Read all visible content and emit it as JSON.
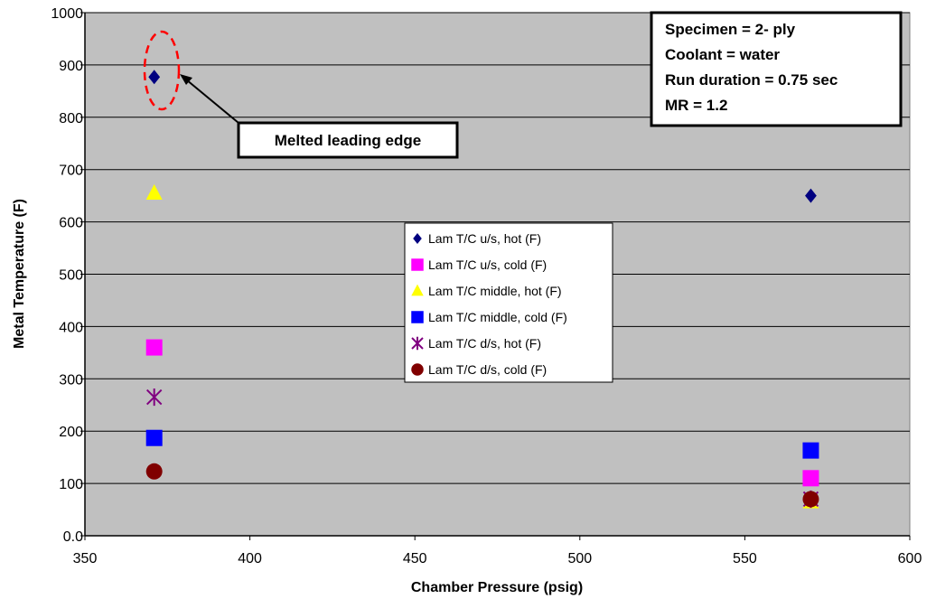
{
  "chart_data": {
    "type": "scatter",
    "xlabel": "Chamber Pressure (psig)",
    "ylabel": "Metal Temperature (F)",
    "xlim": [
      350,
      600
    ],
    "ylim": [
      0,
      1000
    ],
    "x_ticks": [
      "350",
      "400",
      "450",
      "500",
      "550",
      "600"
    ],
    "y_ticks": [
      "0.0",
      "100",
      "200",
      "300",
      "400",
      "500",
      "600",
      "700",
      "800",
      "900",
      "1000"
    ],
    "grid": "horizontal",
    "legend_position": "center",
    "series": [
      {
        "name": "Lam T/C u/s, hot (F)",
        "marker": "diamond",
        "color": "#000080",
        "points": [
          {
            "x": 371,
            "y": 877
          },
          {
            "x": 570,
            "y": 650
          }
        ]
      },
      {
        "name": "Lam T/C u/s, cold (F)",
        "marker": "square",
        "color": "#FF00FF",
        "points": [
          {
            "x": 371,
            "y": 360
          },
          {
            "x": 570,
            "y": 110
          }
        ]
      },
      {
        "name": "Lam T/C middle, hot (F)",
        "marker": "triangle",
        "color": "#FFFF00",
        "points": [
          {
            "x": 371,
            "y": 655
          },
          {
            "x": 570,
            "y": 65
          }
        ]
      },
      {
        "name": "Lam T/C middle, cold (F)",
        "marker": "square",
        "color": "#0000FF",
        "points": [
          {
            "x": 371,
            "y": 187
          },
          {
            "x": 570,
            "y": 163
          }
        ]
      },
      {
        "name": "Lam T/C d/s, hot (F)",
        "marker": "star",
        "color": "#800080",
        "points": [
          {
            "x": 371,
            "y": 265
          },
          {
            "x": 570,
            "y": 70
          }
        ]
      },
      {
        "name": "Lam T/C d/s, cold (F)",
        "marker": "circle",
        "color": "#800000",
        "points": [
          {
            "x": 371,
            "y": 123
          },
          {
            "x": 570,
            "y": 70
          }
        ]
      }
    ],
    "annotations": {
      "info_box": [
        "Specimen = 2- ply",
        "Coolant = water",
        "Run duration = 0.75 sec",
        "MR = 1.2"
      ],
      "callout": "Melted leading edge"
    }
  },
  "colors": {
    "plot_background": "#C0C0C0",
    "grid": "#000000",
    "highlight_ellipse": "#FF0000"
  }
}
